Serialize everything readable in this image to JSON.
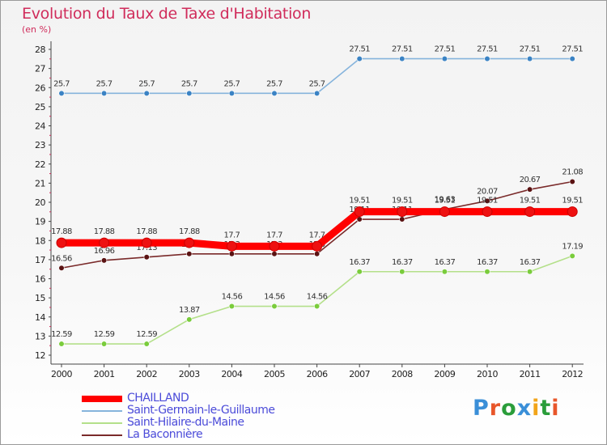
{
  "header": {
    "title": "Evolution du Taux de Taxe d'Habitation",
    "subtitle": "(en %)"
  },
  "logo": {
    "text": "Proxiti",
    "letter_colors": [
      "#3a8fd8",
      "#e8562a",
      "#2a9d3a",
      "#3a8fd8",
      "#f2a51a",
      "#2a9d3a",
      "#e8562a"
    ]
  },
  "chart_data": {
    "type": "line",
    "title": "Evolution du Taux de Taxe d'Habitation",
    "ylabel": "(en %)",
    "xlabel": "",
    "x": [
      "2000",
      "2001",
      "2002",
      "2003",
      "2004",
      "2005",
      "2006",
      "2007",
      "2008",
      "2009",
      "2010",
      "2011",
      "2012"
    ],
    "ylim": [
      12,
      28
    ],
    "yticks": [
      12,
      13,
      14,
      15,
      16,
      17,
      18,
      19,
      20,
      21,
      22,
      23,
      24,
      25,
      26,
      27,
      28
    ],
    "grid": false,
    "legend_position": "bottom-left",
    "series": [
      {
        "name": "CHAILLAND",
        "color": "#ff0000",
        "marker_color": "#ee1111",
        "emphasis": "thick",
        "values": [
          17.88,
          17.88,
          17.88,
          17.88,
          17.7,
          17.7,
          17.7,
          19.51,
          19.51,
          19.51,
          19.51,
          19.51,
          19.51
        ],
        "labels": [
          "17.88",
          "17.88",
          "17.88",
          "17.88",
          "17.7",
          "17.7",
          "17.7",
          "19.51",
          "19.51",
          "19.51",
          "19.51",
          "19.51",
          "19.51"
        ]
      },
      {
        "name": "Saint-Germain-le-Guillaume",
        "color": "#86b4dc",
        "marker_color": "#3b83c4",
        "emphasis": "thin",
        "values": [
          25.7,
          25.7,
          25.7,
          25.7,
          25.7,
          25.7,
          25.7,
          27.51,
          27.51,
          27.51,
          27.51,
          27.51,
          27.51
        ],
        "labels": [
          "25.7",
          "25.7",
          "25.7",
          "25.7",
          "25.7",
          "25.7",
          "25.7",
          "27.51",
          "27.51",
          "27.51",
          "27.51",
          "27.51",
          "27.51"
        ]
      },
      {
        "name": "Saint-Hilaire-du-Maine",
        "color": "#b4e08a",
        "marker_color": "#7acc3c",
        "emphasis": "thin",
        "values": [
          12.59,
          12.59,
          12.59,
          13.87,
          14.56,
          14.56,
          14.56,
          16.37,
          16.37,
          16.37,
          16.37,
          16.37,
          17.19
        ],
        "labels": [
          "12.59",
          "12.59",
          "12.59",
          "13.87",
          "14.56",
          "14.56",
          "14.56",
          "16.37",
          "16.37",
          "16.37",
          "16.37",
          "16.37",
          "17.19"
        ]
      },
      {
        "name": "La Baconnière",
        "color": "#7a2a2a",
        "marker_color": "#5a1212",
        "emphasis": "thin",
        "values": [
          16.56,
          16.96,
          17.13,
          17.3,
          17.3,
          17.3,
          17.3,
          19.11,
          19.11,
          19.63,
          20.07,
          20.67,
          21.08
        ],
        "labels": [
          "16.56",
          "16.96",
          "17.13",
          "17.3",
          "17.3",
          "17.3",
          "17.3",
          "19.11",
          "19.11",
          "19.63",
          "20.07",
          "20.67",
          "21.08"
        ]
      }
    ]
  }
}
